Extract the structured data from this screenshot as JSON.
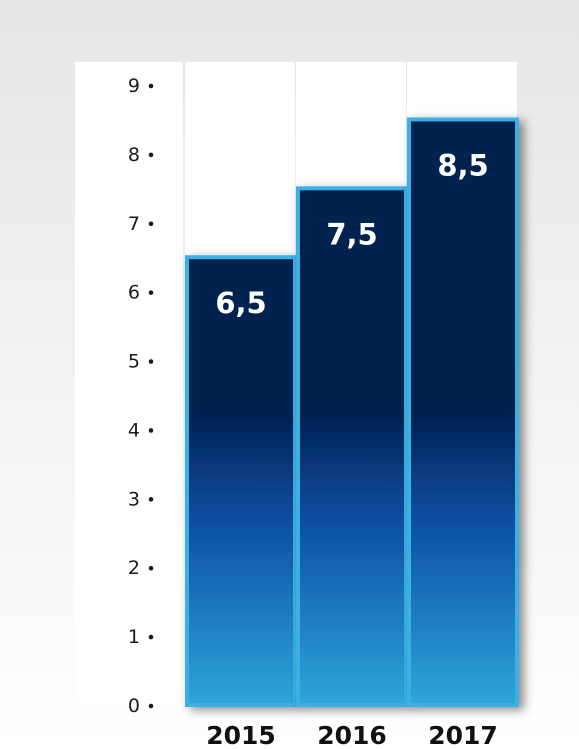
{
  "chart_data": {
    "type": "bar",
    "categories": [
      "2015",
      "2016",
      "2017"
    ],
    "values": [
      6.5,
      7.5,
      8.5
    ],
    "data_labels": [
      "6,5",
      "7,5",
      "8,5"
    ],
    "y_ticks": [
      "0",
      "1",
      "2",
      "3",
      "4",
      "5",
      "6",
      "7",
      "8",
      "9"
    ],
    "ylim": [
      0,
      9
    ],
    "grid": false,
    "title": "",
    "xlabel": "",
    "ylabel": "",
    "colors": {
      "bar_top": "#03204f",
      "bar_mid": "#0b4da0",
      "bar_bottom": "#2ea6db",
      "bar_border": "#3ab0e2",
      "column_bg": "#ffffff",
      "bg_top": "#e6e6e6",
      "bg_bottom": "#ffffff"
    }
  }
}
